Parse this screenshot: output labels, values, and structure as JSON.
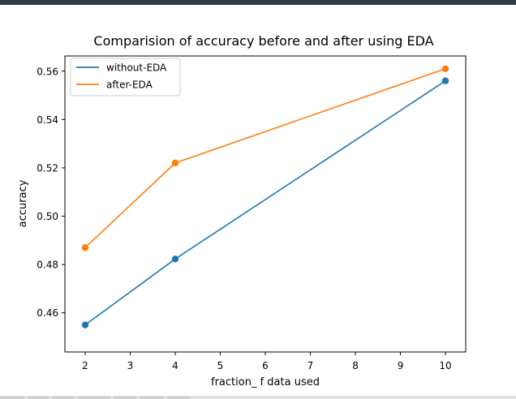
{
  "chart_data": {
    "type": "line",
    "title": "Comparision of accuracy before and after using EDA",
    "xlabel": "fraction_ f data used",
    "ylabel": "accuracy",
    "x": [
      2,
      4,
      10
    ],
    "xlim": [
      1.55,
      10.45
    ],
    "ylim": [
      0.4438,
      0.5663
    ],
    "xticks": [
      2,
      3,
      4,
      5,
      6,
      7,
      8,
      9,
      10
    ],
    "yticks": [
      0.46,
      0.48,
      0.5,
      0.52,
      0.54,
      0.56
    ],
    "ytick_labels": [
      "0.46",
      "0.48",
      "0.50",
      "0.52",
      "0.54",
      "0.56"
    ],
    "grid": false,
    "legend_position": "upper-left",
    "series": [
      {
        "name": "without-EDA",
        "color": "#1f77b4",
        "values": [
          0.455,
          0.4823,
          0.556
        ]
      },
      {
        "name": "after-EDA",
        "color": "#ff7f0e",
        "values": [
          0.487,
          0.522,
          0.561
        ]
      }
    ]
  }
}
